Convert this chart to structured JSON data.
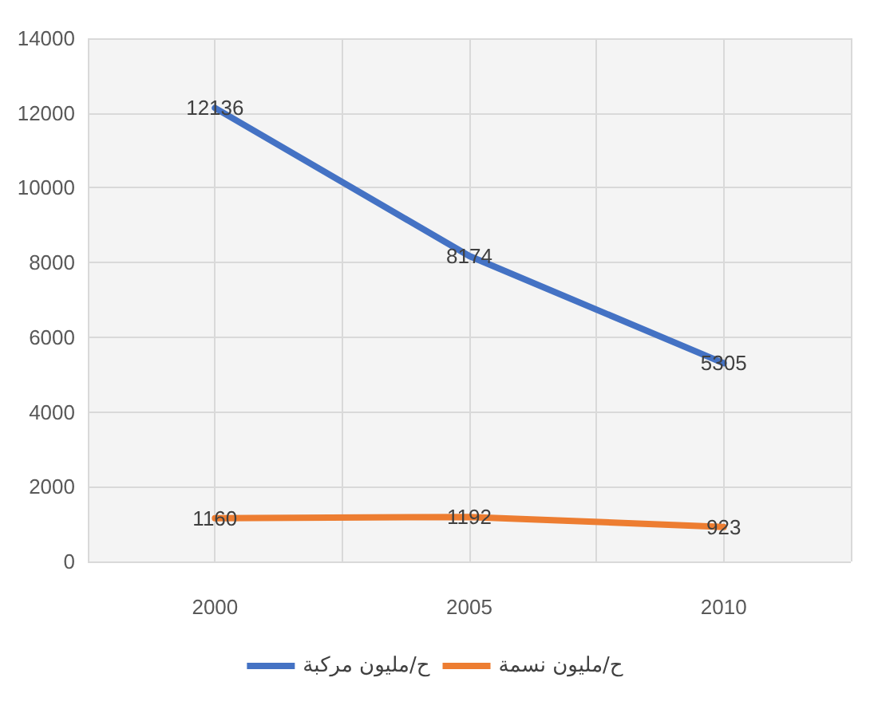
{
  "chart_data": {
    "type": "line",
    "x": [
      2000,
      2005,
      2010
    ],
    "series": [
      {
        "name": "ح/مليون مركبة",
        "color": "#4472c4",
        "values": [
          12136,
          8174,
          5305
        ]
      },
      {
        "name": "ح/مليون نسمة",
        "color": "#ed7d31",
        "values": [
          1160,
          1192,
          923
        ]
      }
    ],
    "xlim": [
      1997.5,
      2012.5
    ],
    "xticks": [
      {
        "value": 1997.5,
        "label": null
      },
      2000,
      {
        "value": 2002.5,
        "label": null
      },
      2005,
      {
        "value": 2007.5,
        "label": null
      },
      2010,
      {
        "value": 2012.5,
        "label": null
      }
    ],
    "ylim": [
      0,
      14000
    ],
    "yticks": [
      0,
      2000,
      4000,
      6000,
      8000,
      10000,
      12000,
      14000
    ],
    "grid": true,
    "legend": "bottom",
    "data_labels": true,
    "marker": "none",
    "line_style": "solid"
  }
}
